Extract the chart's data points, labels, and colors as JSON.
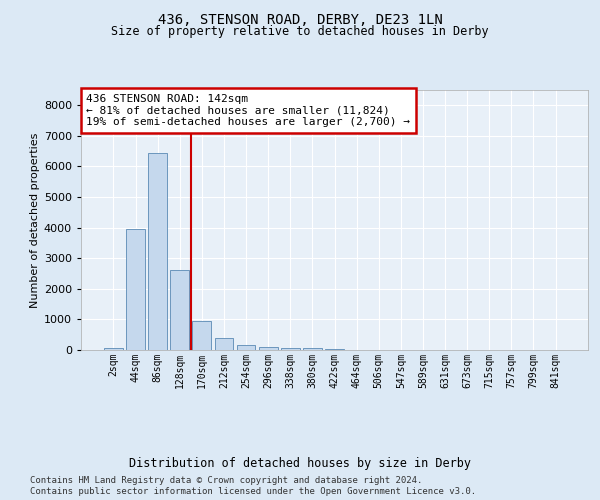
{
  "title": "436, STENSON ROAD, DERBY, DE23 1LN",
  "subtitle": "Size of property relative to detached houses in Derby",
  "xlabel": "Distribution of detached houses by size in Derby",
  "ylabel": "Number of detached properties",
  "bar_color": "#c5d8ed",
  "bar_edge_color": "#5a8ab5",
  "background_color": "#dce9f5",
  "plot_bg_color": "#e8f0f8",
  "grid_color": "#ffffff",
  "annotation_text": "436 STENSON ROAD: 142sqm\n← 81% of detached houses are smaller (11,824)\n19% of semi-detached houses are larger (2,700) →",
  "annotation_box_color": "#ffffff",
  "annotation_box_edge_color": "#cc0000",
  "vline_color": "#cc0000",
  "ylim": [
    0,
    8500
  ],
  "yticks": [
    0,
    1000,
    2000,
    3000,
    4000,
    5000,
    6000,
    7000,
    8000
  ],
  "categories": [
    "2sqm",
    "44sqm",
    "86sqm",
    "128sqm",
    "170sqm",
    "212sqm",
    "254sqm",
    "296sqm",
    "338sqm",
    "380sqm",
    "422sqm",
    "464sqm",
    "506sqm",
    "547sqm",
    "589sqm",
    "631sqm",
    "673sqm",
    "715sqm",
    "757sqm",
    "799sqm",
    "841sqm"
  ],
  "values": [
    50,
    3950,
    6450,
    2600,
    950,
    400,
    150,
    100,
    65,
    50,
    30,
    10,
    5,
    3,
    2,
    1,
    1,
    1,
    0,
    0,
    0
  ],
  "footer_line1": "Contains HM Land Registry data © Crown copyright and database right 2024.",
  "footer_line2": "Contains public sector information licensed under the Open Government Licence v3.0.",
  "vline_index": 3.5
}
